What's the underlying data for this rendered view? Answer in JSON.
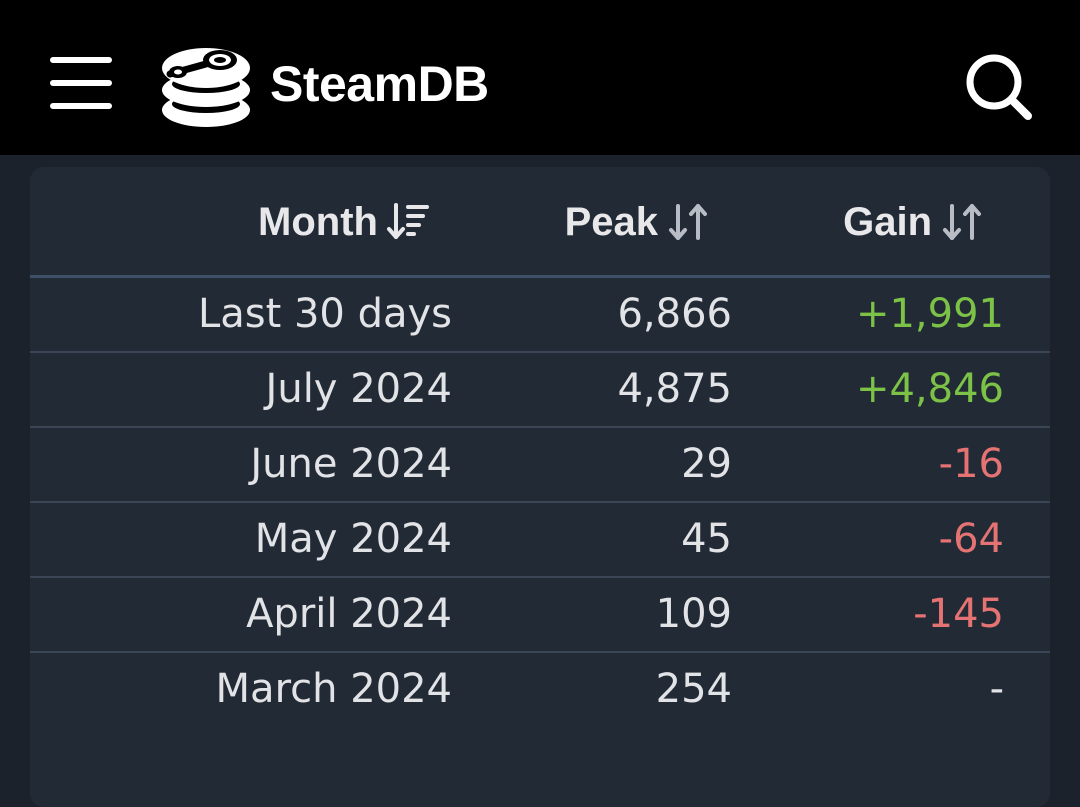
{
  "header": {
    "brand": "SteamDB",
    "menu_icon": "hamburger-menu-icon",
    "logo_icon": "steamdb-logo-icon",
    "search_icon": "search-icon",
    "background": "#000000"
  },
  "table": {
    "columns": [
      {
        "label": "Month",
        "sort_icon": "sort-descending-icon",
        "sorted": true
      },
      {
        "label": "Peak",
        "sort_icon": "sort-both-icon",
        "sorted": false
      },
      {
        "label": "Gain",
        "sort_icon": "sort-both-icon",
        "sorted": false
      }
    ],
    "rows": [
      {
        "month": "Last 30 days",
        "peak": "6,866",
        "gain": "+1,991",
        "gain_type": "pos"
      },
      {
        "month": "July 2024",
        "peak": "4,875",
        "gain": "+4,846",
        "gain_type": "pos"
      },
      {
        "month": "June 2024",
        "peak": "29",
        "gain": "-16",
        "gain_type": "neg"
      },
      {
        "month": "May 2024",
        "peak": "45",
        "gain": "-64",
        "gain_type": "neg"
      },
      {
        "month": "April 2024",
        "peak": "109",
        "gain": "-145",
        "gain_type": "neg"
      },
      {
        "month": "March 2024",
        "peak": "254",
        "gain": "-",
        "gain_type": "none"
      }
    ]
  },
  "colors": {
    "positive": "#7cc247",
    "negative": "#e57373",
    "card_background": "#222a35",
    "page_background": "#1c222c"
  }
}
